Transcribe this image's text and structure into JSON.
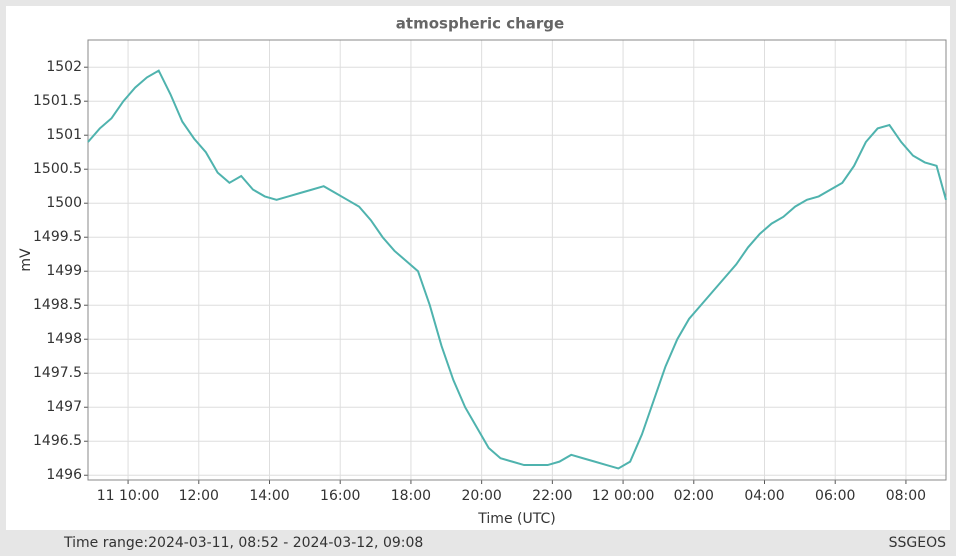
{
  "chart_data": {
    "type": "line",
    "title": "atmospheric charge",
    "ylabel": "mV",
    "xlabel": "Time (UTC)",
    "footer_left": "Time range:2024-03-11, 08:52 - 2024-03-12, 09:08",
    "footer_right": "SSGEOS",
    "grid": true,
    "xlim": [
      "2024-03-11T08:52",
      "2024-03-12T09:08"
    ],
    "xticks": [
      {
        "value": "2024-03-11T10:00",
        "label": "11 10:00"
      },
      {
        "value": "2024-03-11T12:00",
        "label": "12:00"
      },
      {
        "value": "2024-03-11T14:00",
        "label": "14:00"
      },
      {
        "value": "2024-03-11T16:00",
        "label": "16:00"
      },
      {
        "value": "2024-03-11T18:00",
        "label": "18:00"
      },
      {
        "value": "2024-03-11T20:00",
        "label": "20:00"
      },
      {
        "value": "2024-03-11T22:00",
        "label": "22:00"
      },
      {
        "value": "2024-03-12T00:00",
        "label": "12 00:00"
      },
      {
        "value": "2024-03-12T02:00",
        "label": "02:00"
      },
      {
        "value": "2024-03-12T04:00",
        "label": "04:00"
      },
      {
        "value": "2024-03-12T06:00",
        "label": "06:00"
      },
      {
        "value": "2024-03-12T08:00",
        "label": "08:00"
      }
    ],
    "ylim": [
      1495.93,
      1502.4
    ],
    "yticks": [
      1496,
      1496.5,
      1497,
      1497.5,
      1498,
      1498.5,
      1499,
      1499.5,
      1500,
      1500.5,
      1501,
      1501.5,
      1502
    ],
    "x": [
      "2024-03-11T08:52",
      "2024-03-11T09:12",
      "2024-03-11T09:32",
      "2024-03-11T09:52",
      "2024-03-11T10:12",
      "2024-03-11T10:32",
      "2024-03-11T10:52",
      "2024-03-11T11:12",
      "2024-03-11T11:32",
      "2024-03-11T11:52",
      "2024-03-11T12:12",
      "2024-03-11T12:32",
      "2024-03-11T12:52",
      "2024-03-11T13:12",
      "2024-03-11T13:32",
      "2024-03-11T13:52",
      "2024-03-11T14:12",
      "2024-03-11T14:32",
      "2024-03-11T14:52",
      "2024-03-11T15:12",
      "2024-03-11T15:32",
      "2024-03-11T15:52",
      "2024-03-11T16:12",
      "2024-03-11T16:32",
      "2024-03-11T16:52",
      "2024-03-11T17:12",
      "2024-03-11T17:32",
      "2024-03-11T17:52",
      "2024-03-11T18:12",
      "2024-03-11T18:32",
      "2024-03-11T18:52",
      "2024-03-11T19:12",
      "2024-03-11T19:32",
      "2024-03-11T19:52",
      "2024-03-11T20:12",
      "2024-03-11T20:32",
      "2024-03-11T20:52",
      "2024-03-11T21:12",
      "2024-03-11T21:32",
      "2024-03-11T21:52",
      "2024-03-11T22:12",
      "2024-03-11T22:32",
      "2024-03-11T22:52",
      "2024-03-11T23:12",
      "2024-03-11T23:32",
      "2024-03-11T23:52",
      "2024-03-12T00:12",
      "2024-03-12T00:32",
      "2024-03-12T00:52",
      "2024-03-12T01:12",
      "2024-03-12T01:32",
      "2024-03-12T01:52",
      "2024-03-12T02:12",
      "2024-03-12T02:32",
      "2024-03-12T02:52",
      "2024-03-12T03:12",
      "2024-03-12T03:32",
      "2024-03-12T03:52",
      "2024-03-12T04:12",
      "2024-03-12T04:32",
      "2024-03-12T04:52",
      "2024-03-12T05:12",
      "2024-03-12T05:32",
      "2024-03-12T05:52",
      "2024-03-12T06:12",
      "2024-03-12T06:32",
      "2024-03-12T06:52",
      "2024-03-12T07:12",
      "2024-03-12T07:32",
      "2024-03-12T07:52",
      "2024-03-12T08:12",
      "2024-03-12T08:32",
      "2024-03-12T08:52",
      "2024-03-12T09:08"
    ],
    "series": [
      {
        "name": "atmospheric charge",
        "color": "#4fb3ae",
        "values": [
          1500.9,
          1501.1,
          1501.25,
          1501.5,
          1501.7,
          1501.85,
          1501.95,
          1501.6,
          1501.2,
          1500.95,
          1500.75,
          1500.45,
          1500.3,
          1500.4,
          1500.2,
          1500.1,
          1500.05,
          1500.1,
          1500.15,
          1500.2,
          1500.25,
          1500.15,
          1500.05,
          1499.95,
          1499.75,
          1499.5,
          1499.3,
          1499.15,
          1499.0,
          1498.5,
          1497.9,
          1497.4,
          1497.0,
          1496.7,
          1496.4,
          1496.25,
          1496.2,
          1496.15,
          1496.15,
          1496.15,
          1496.2,
          1496.3,
          1496.25,
          1496.2,
          1496.15,
          1496.1,
          1496.2,
          1496.6,
          1497.1,
          1497.6,
          1498.0,
          1498.3,
          1498.5,
          1498.7,
          1498.9,
          1499.1,
          1499.35,
          1499.55,
          1499.7,
          1499.8,
          1499.95,
          1500.05,
          1500.1,
          1500.2,
          1500.3,
          1500.55,
          1500.9,
          1501.1,
          1501.15,
          1500.9,
          1500.7,
          1500.6,
          1500.55,
          1500.05
        ]
      }
    ]
  }
}
